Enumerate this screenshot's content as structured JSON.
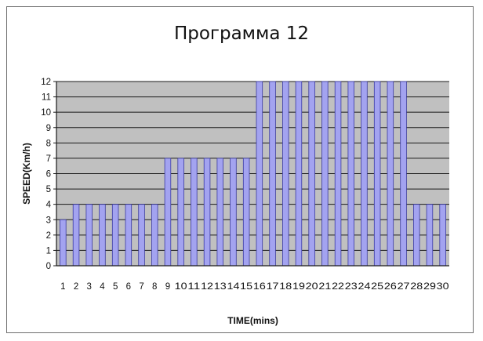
{
  "chart_data": {
    "type": "bar",
    "title": "Программа 12",
    "xlabel": "TIME(mins)",
    "ylabel": "SPEED(Km/h)",
    "ylim": [
      0,
      12
    ],
    "yticks": [
      0,
      1,
      2,
      3,
      4,
      5,
      6,
      7,
      8,
      9,
      10,
      11,
      12
    ],
    "grid": true,
    "legend": "none",
    "categories": [
      "1",
      "2",
      "3",
      "4",
      "5",
      "6",
      "7",
      "8",
      "9",
      "10",
      "11",
      "12",
      "13",
      "14",
      "15",
      "16",
      "17",
      "18",
      "19",
      "20",
      "21",
      "22",
      "23",
      "24",
      "25",
      "26",
      "27",
      "28",
      "29",
      "30"
    ],
    "values": [
      3,
      4,
      4,
      4,
      4,
      4,
      4,
      4,
      7,
      7,
      7,
      7,
      7,
      7,
      7,
      12,
      12,
      12,
      12,
      12,
      12,
      12,
      12,
      12,
      12,
      12,
      12,
      4,
      4,
      4
    ],
    "colors": {
      "bar_fill": "#a3a3f0",
      "bar_edge": "#3a3aa0",
      "plot_bg": "#c0c0c0",
      "gridline": "#1a1a1a",
      "frame": "#6e6e6e"
    }
  }
}
